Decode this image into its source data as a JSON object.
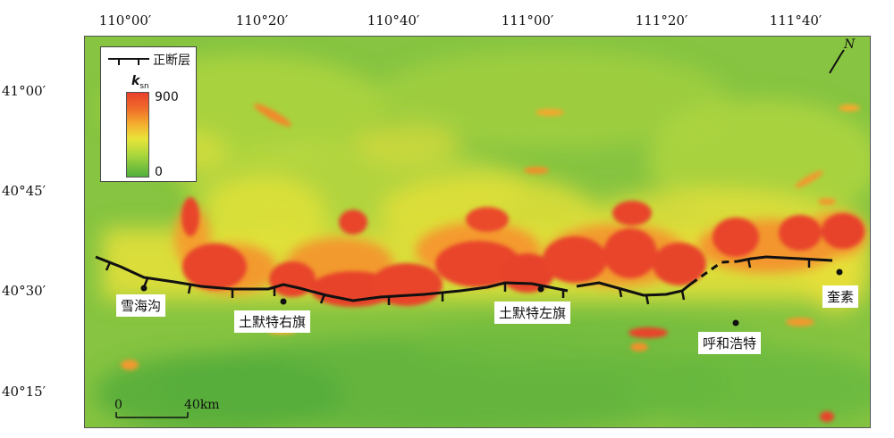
{
  "longitude_ticks": [
    "110°00′",
    "110°20′",
    "110°40′",
    "111°00′",
    "111°20′",
    "111°40′"
  ],
  "latitude_ticks": [
    "41°00′",
    "40°45′",
    "40°30′",
    "40°15′"
  ],
  "legend": {
    "fault_label": "正断层",
    "ramp_symbol": "k",
    "ramp_subscript": "sn",
    "max": "900",
    "min": "0",
    "colors": [
      "#e8402a",
      "#f4b02e",
      "#e8e43a",
      "#a8d63c",
      "#4fae3c"
    ]
  },
  "places": [
    "雪海沟",
    "土默特右旗",
    "土默特左旗",
    "呼和浩特",
    "奎素"
  ],
  "scale": {
    "start": "0",
    "end": "40km"
  },
  "north_label": "N"
}
